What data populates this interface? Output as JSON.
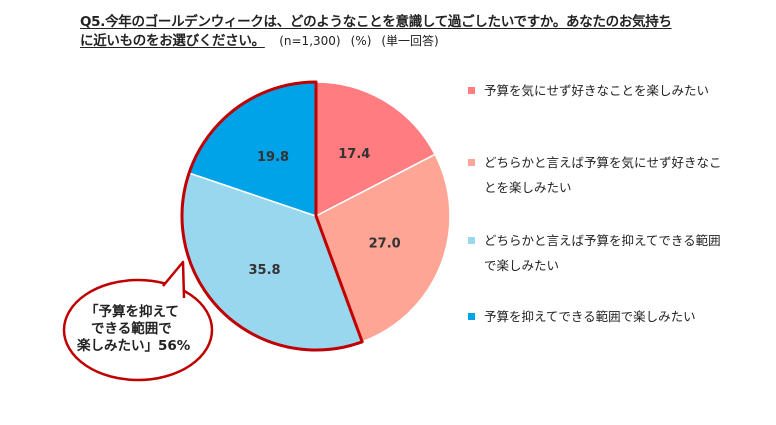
{
  "title": {
    "line1": "Q5.今年のゴールデンウィークは、どのようなことを意識して過ごしたいですか。あなたのお気持ち",
    "line2": "に近いものをお選びください。",
    "sample": "(n=1,300)",
    "unit": "(%)",
    "answer_type": "(単一回答)"
  },
  "chart_data": {
    "type": "pie",
    "start_angle_deg": 0,
    "direction": "clockwise",
    "labels": [
      "予算を気にせず好きなことを楽しみたい",
      "どちらかと言えば予算を気にせず好きなことを楽しみたい",
      "どちらかと言えば予算を抑えてできる範囲で楽しみたい",
      "予算を抑えてできる範囲で楽しみたい"
    ],
    "values": [
      17.4,
      27.0,
      35.8,
      19.8
    ],
    "value_labels": [
      "17.4",
      "27.0",
      "35.8",
      "19.8"
    ],
    "colors": [
      "#ff7c80",
      "#ffa595",
      "#99d7ef",
      "#00a3e8"
    ],
    "highlight": {
      "slices": [
        2,
        3
      ],
      "outline_color": "#c00000"
    },
    "legend": {
      "position": "right",
      "items": [
        {
          "lines": [
            "予算を気にせず好きなことを楽しみたい"
          ],
          "color": "#ff7c80"
        },
        {
          "lines": [
            "どちらかと言えば予算を気にせず好きなこ",
            "とを楽しみたい"
          ],
          "color": "#ffa595"
        },
        {
          "lines": [
            "どちらかと言えば予算を抑えてできる範囲",
            "で楽しみたい"
          ],
          "color": "#99d7ef"
        },
        {
          "lines": [
            "予算を抑えてできる範囲で楽しみたい"
          ],
          "color": "#00a3e8"
        }
      ]
    }
  },
  "callout": {
    "lines": [
      "「予算を抑えて",
      "できる範囲で",
      "楽しみたい」56%"
    ],
    "border_color": "#c00000"
  }
}
